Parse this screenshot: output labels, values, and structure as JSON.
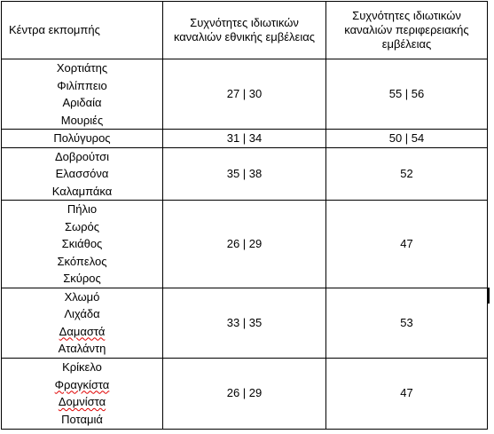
{
  "table": {
    "header": [
      "Κέντρα εκπομπής",
      "Συχνότητες ιδιωτικών καναλιών εθνικής εμβέλειας",
      "Συχνότητες ιδιωτικών καναλιών περιφερειακής εμβέλειας"
    ],
    "rows": [
      [
        [
          "Χορτιάτης",
          "Φιλίππειο",
          "Αριδαία",
          "Μουριές"
        ],
        "27 | 30",
        "55 | 56"
      ],
      [
        [
          "Πολύγυρος"
        ],
        "31 | 34",
        "50 | 54"
      ],
      [
        [
          "Δοβρούτσι",
          "Ελασσόνα",
          "Καλαμπάκα"
        ],
        "35 | 38",
        "52"
      ],
      [
        [
          "Πήλιο",
          "Σωρός",
          "Σκιάθος",
          "Σκόπελος",
          "Σκύρος"
        ],
        "26 | 29",
        "47"
      ],
      [
        [
          "Χλωμό",
          "Λιχάδα",
          "Δαμαστά",
          "Αταλάντη"
        ],
        "33 | 35",
        "53"
      ],
      [
        [
          "Κρίκελο",
          "Φραγκίστα",
          "Δομνίστα",
          "Ποταμιά"
        ],
        "26 | 29",
        "47"
      ]
    ]
  }
}
